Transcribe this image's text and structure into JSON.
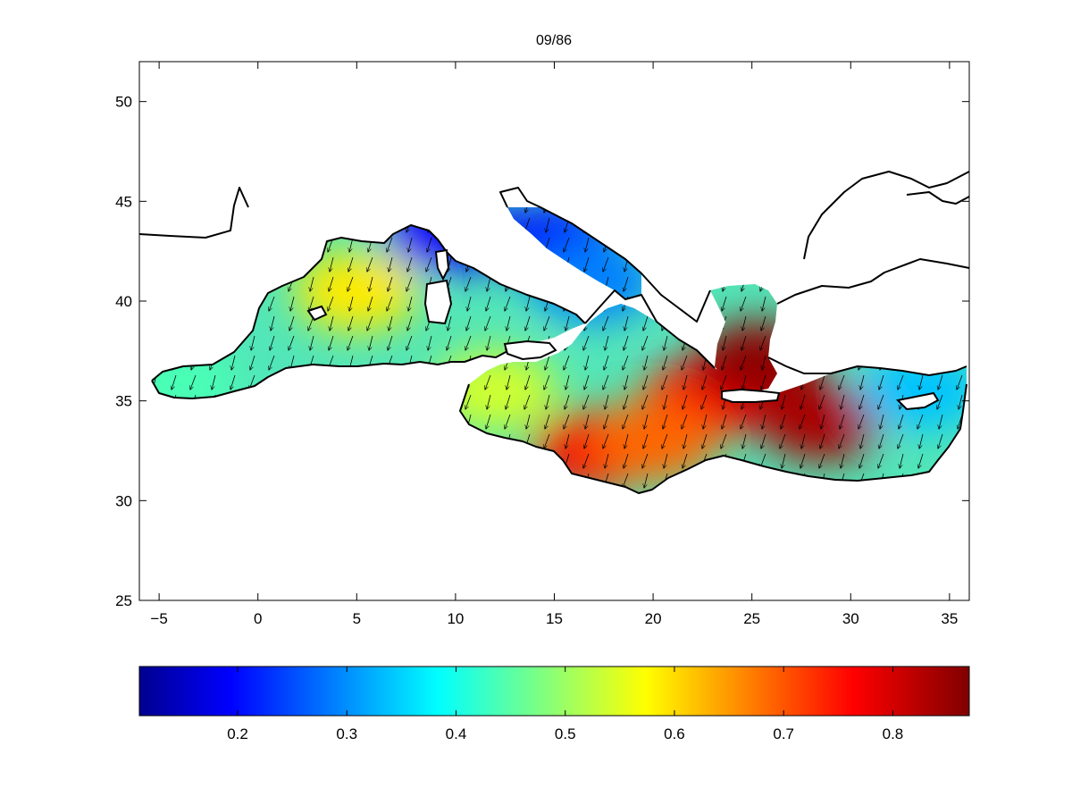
{
  "title": "09/86",
  "map": {
    "xlim": [
      -6,
      36
    ],
    "ylim": [
      25,
      52
    ],
    "x_ticks": [
      -5,
      0,
      5,
      10,
      15,
      20,
      25,
      30,
      35
    ],
    "x_tick_labels": [
      "−5",
      "0",
      "5",
      "10",
      "15",
      "20",
      "25",
      "30",
      "35"
    ],
    "y_ticks": [
      25,
      30,
      35,
      40,
      45,
      50
    ],
    "y_tick_labels": [
      "25",
      "30",
      "35",
      "40",
      "45",
      "50"
    ],
    "field_description_color_scale": "jet",
    "field_hotspots": [
      {
        "lon": 5.0,
        "lat": 40.5,
        "value": 0.6
      },
      {
        "lon": 9.5,
        "lat": 43.5,
        "value": 0.2
      },
      {
        "lon": 15.0,
        "lat": 43.0,
        "value": 0.22
      },
      {
        "lon": 17.0,
        "lat": 41.0,
        "value": 0.3
      },
      {
        "lon": -4.0,
        "lat": 35.8,
        "value": 0.45
      },
      {
        "lon": 17.0,
        "lat": 32.5,
        "value": 0.78
      },
      {
        "lon": 22.5,
        "lat": 35.0,
        "value": 0.78
      },
      {
        "lon": 25.3,
        "lat": 37.0,
        "value": 0.86
      },
      {
        "lon": 28.5,
        "lat": 34.0,
        "value": 0.84
      },
      {
        "lon": 33.5,
        "lat": 35.5,
        "value": 0.35
      },
      {
        "lon": 12.0,
        "lat": 35.5,
        "value": 0.55
      },
      {
        "lon": 20.0,
        "lat": 33.0,
        "value": 0.7
      }
    ],
    "arrow_direction": "south-southwest"
  },
  "colorbar": {
    "colormap": "jet",
    "range": [
      0.11,
      0.87
    ],
    "ticks": [
      0.2,
      0.3,
      0.4,
      0.5,
      0.6,
      0.7,
      0.8
    ],
    "tick_labels": [
      "0.2",
      "0.3",
      "0.4",
      "0.5",
      "0.6",
      "0.7",
      "0.8"
    ]
  }
}
